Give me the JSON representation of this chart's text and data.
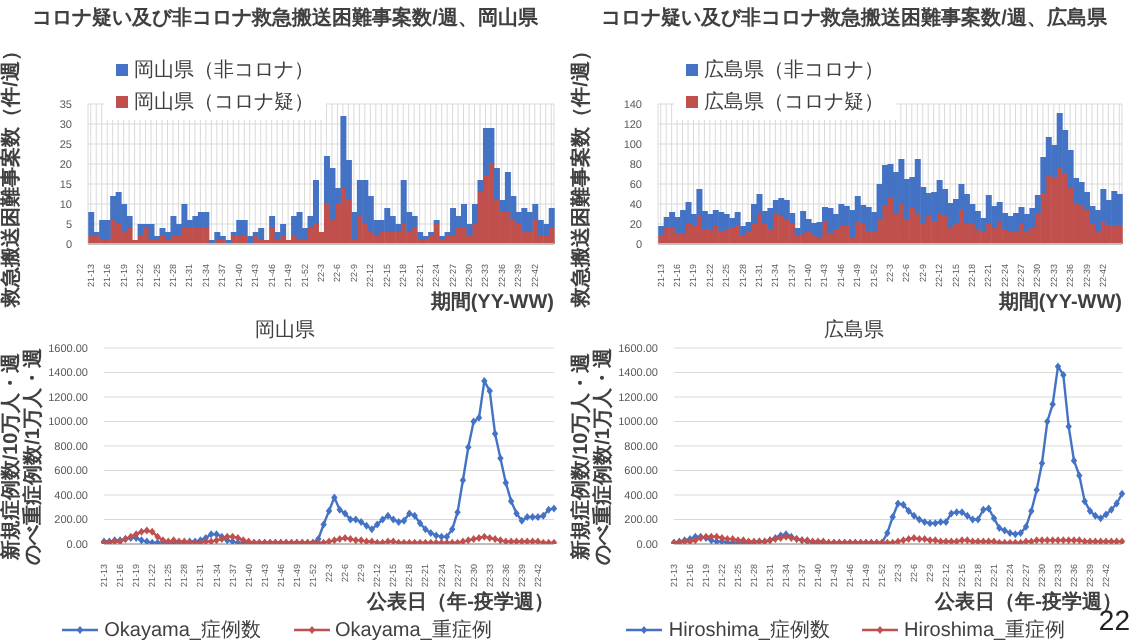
{
  "chart_data": [
    {
      "type": "bar",
      "title": "コロナ疑い及び非コロナ救急搬送困難事案数/週、岡山県",
      "ylabel": "救急搬送困難事案数（件/週）",
      "xlabel": "期間(YY-WW)",
      "stacked": true,
      "grid": true,
      "legend": "top left",
      "categories": [
        "21-13",
        null,
        null,
        "21-16",
        null,
        null,
        "21-19",
        null,
        null,
        "21-22",
        null,
        null,
        "21-25",
        null,
        null,
        "21-28",
        null,
        null,
        "21-31",
        null,
        null,
        "21-34",
        null,
        null,
        "21-37",
        null,
        null,
        "21-40",
        null,
        null,
        "21-43",
        null,
        null,
        "21-46",
        null,
        null,
        "21-49",
        null,
        null,
        "21-52",
        null,
        null,
        "22-3",
        null,
        null,
        "22-6",
        null,
        null,
        "22-9",
        null,
        null,
        "22-12",
        null,
        null,
        "22-15",
        null,
        null,
        "22-18",
        null,
        null,
        "22-21",
        null,
        null,
        "22-24",
        null,
        null,
        "22-27",
        null,
        null,
        "22-30",
        null,
        null,
        "22-33",
        null,
        null,
        "22-36",
        null,
        null,
        "22-39",
        null,
        null,
        "22-42",
        null,
        null,
        null
      ],
      "ylim": [
        0,
        35
      ],
      "yticks": [
        0,
        5,
        10,
        15,
        20,
        25,
        30,
        35
      ],
      "series": [
        {
          "name": "岡山県（コロナ疑）",
          "color": "#c0504d",
          "values": [
            2,
            2,
            1,
            1,
            6,
            5,
            3,
            4,
            1,
            2,
            4,
            1,
            1,
            2,
            1,
            2,
            2,
            4,
            4,
            4,
            4,
            4,
            0,
            1,
            1,
            0,
            2,
            2,
            2,
            0,
            2,
            1,
            1,
            4,
            1,
            2,
            1,
            2,
            1,
            1,
            4,
            5,
            3,
            10,
            6,
            10,
            14,
            11,
            1,
            7,
            5,
            3,
            2,
            3,
            3,
            3,
            3,
            5,
            3,
            4,
            1,
            1,
            2,
            5,
            1,
            2,
            2,
            4,
            4,
            2,
            5,
            13,
            17,
            20,
            11,
            8,
            8,
            6,
            5,
            3,
            3,
            6,
            2,
            2,
            4
          ]
        },
        {
          "name": "岡山県（非コロナ）",
          "color": "#4472c4",
          "values": [
            6,
            1,
            5,
            5,
            6,
            8,
            7,
            3,
            0,
            3,
            1,
            4,
            1,
            2,
            2,
            5,
            3,
            6,
            2,
            3,
            4,
            4,
            1,
            2,
            1,
            1,
            1,
            4,
            4,
            2,
            1,
            3,
            0,
            3,
            2,
            3,
            0,
            5,
            7,
            3,
            3,
            11,
            0,
            12,
            13,
            4,
            18,
            10,
            7,
            9,
            11,
            9,
            4,
            3,
            6,
            4,
            2,
            11,
            5,
            3,
            2,
            1,
            1,
            1,
            1,
            1,
            7,
            3,
            6,
            3,
            5,
            3,
            12,
            9,
            8,
            3,
            10,
            6,
            3,
            6,
            5,
            4,
            4,
            3,
            5
          ]
        }
      ]
    },
    {
      "type": "bar",
      "title": "コロナ疑い及び非コロナ救急搬送困難事案数/週、広島県",
      "ylabel": "救急搬送困難事案数（件/週）",
      "xlabel": "期間(YY-WW)",
      "stacked": true,
      "grid": true,
      "legend": "top left",
      "categories": [
        "21-13",
        null,
        null,
        "21-16",
        null,
        null,
        "21-19",
        null,
        null,
        "21-22",
        null,
        null,
        "21-25",
        null,
        null,
        "21-28",
        null,
        null,
        "21-31",
        null,
        null,
        "21-34",
        null,
        null,
        "21-37",
        null,
        null,
        "21-40",
        null,
        null,
        "21-43",
        null,
        null,
        "21-46",
        null,
        null,
        "21-49",
        null,
        null,
        "21-52",
        null,
        null,
        "22-3",
        null,
        null,
        "22-6",
        null,
        null,
        "22-9",
        null,
        null,
        "22-12",
        null,
        null,
        "22-15",
        null,
        null,
        "22-18",
        null,
        null,
        "22-21",
        null,
        null,
        "22-24",
        null,
        null,
        "22-27",
        null,
        null,
        "22-30",
        null,
        null,
        "22-33",
        null,
        null,
        "22-36",
        null,
        null,
        "22-39",
        null,
        null,
        "22-42",
        null,
        null,
        null
      ],
      "ylim": [
        0,
        140
      ],
      "yticks": [
        0,
        20,
        40,
        60,
        80,
        100,
        120,
        140
      ],
      "series": [
        {
          "name": "広島県（コロナ疑）",
          "color": "#c0504d",
          "values": [
            9,
            17,
            16,
            10,
            11,
            21,
            18,
            28,
            15,
            15,
            18,
            13,
            15,
            17,
            18,
            8,
            12,
            20,
            30,
            20,
            15,
            31,
            28,
            24,
            20,
            9,
            11,
            13,
            8,
            6,
            22,
            10,
            14,
            18,
            19,
            6,
            22,
            20,
            13,
            13,
            25,
            38,
            46,
            30,
            40,
            25,
            36,
            30,
            21,
            28,
            23,
            30,
            28,
            17,
            21,
            35,
            20,
            20,
            15,
            13,
            20,
            16,
            22,
            14,
            12,
            13,
            20,
            13,
            16,
            30,
            51,
            69,
            67,
            77,
            71,
            56,
            41,
            38,
            34,
            20,
            12,
            23,
            19,
            19,
            19
          ]
        },
        {
          "name": "広島県（非コロナ）",
          "color": "#4472c4",
          "values": [
            9,
            10,
            16,
            17,
            23,
            21,
            12,
            27,
            18,
            15,
            16,
            19,
            15,
            9,
            14,
            10,
            10,
            20,
            20,
            13,
            21,
            13,
            18,
            20,
            11,
            7,
            22,
            12,
            13,
            16,
            15,
            26,
            16,
            22,
            19,
            28,
            26,
            19,
            24,
            19,
            35,
            41,
            34,
            42,
            45,
            40,
            31,
            55,
            36,
            23,
            29,
            34,
            27,
            24,
            24,
            25,
            30,
            20,
            18,
            13,
            29,
            22,
            20,
            17,
            16,
            18,
            17,
            17,
            20,
            19,
            36,
            38,
            32,
            54,
            43,
            38,
            25,
            24,
            18,
            18,
            22,
            32,
            25,
            34,
            31
          ]
        }
      ]
    },
    {
      "type": "line",
      "title": "岡山県",
      "ylabel": "新規症例数/10万人・週のべ重症例数/1万人・週",
      "xlabel": "公表日（年-疫学週）",
      "grid": "y",
      "legend": "bottom",
      "marker": "diamond",
      "categories": [
        "21-13",
        null,
        null,
        "21-16",
        null,
        null,
        "21-19",
        null,
        null,
        "21-22",
        null,
        null,
        "21-25",
        null,
        null,
        "21-28",
        null,
        null,
        "21-31",
        null,
        null,
        "21-34",
        null,
        null,
        "21-37",
        null,
        null,
        "21-40",
        null,
        null,
        "21-43",
        null,
        null,
        "21-46",
        null,
        null,
        "21-49",
        null,
        null,
        "21-52",
        null,
        null,
        "22-3",
        null,
        null,
        "22-6",
        null,
        null,
        "22-9",
        null,
        null,
        "22-12",
        null,
        null,
        "22-15",
        null,
        null,
        "22-18",
        null,
        null,
        "22-21",
        null,
        null,
        "22-24",
        null,
        null,
        "22-27",
        null,
        null,
        "22-30",
        null,
        null,
        "22-33",
        null,
        null,
        "22-36",
        null,
        null,
        "22-39",
        null,
        null,
        "22-42",
        null,
        null,
        null
      ],
      "ylim": [
        0,
        1600
      ],
      "yticks": [
        {
          "value": 0,
          "label": "0.00"
        },
        {
          "value": 200,
          "label": "200.00"
        },
        {
          "value": 400,
          "label": "400.00"
        },
        {
          "value": 600,
          "label": "600.00"
        },
        {
          "value": 800,
          "label": "800.00"
        },
        {
          "value": 1000,
          "label": "1000.00"
        },
        {
          "value": 1200,
          "label": "1200.00"
        },
        {
          "value": 1400,
          "label": "1400.00"
        },
        {
          "value": 1600,
          "label": "1600.00"
        }
      ],
      "series": [
        {
          "name": "Okayama_症例数",
          "color": "#4472c4",
          "values": [
            20,
            20,
            30,
            30,
            40,
            50,
            50,
            30,
            20,
            10,
            10,
            10,
            10,
            10,
            10,
            10,
            20,
            20,
            30,
            50,
            80,
            80,
            60,
            30,
            20,
            10,
            10,
            10,
            10,
            10,
            10,
            10,
            10,
            10,
            10,
            10,
            10,
            10,
            10,
            10,
            40,
            160,
            270,
            380,
            280,
            250,
            200,
            200,
            180,
            150,
            120,
            160,
            200,
            230,
            200,
            180,
            190,
            250,
            230,
            170,
            120,
            90,
            70,
            60,
            60,
            120,
            260,
            520,
            790,
            1000,
            1030,
            1330,
            1250,
            900,
            700,
            500,
            350,
            250,
            190,
            220,
            220,
            220,
            230,
            280,
            290
          ]
        },
        {
          "name": "Okayama_重症例",
          "color": "#c0504d",
          "values": [
            10,
            10,
            20,
            20,
            40,
            60,
            80,
            100,
            110,
            100,
            60,
            30,
            20,
            30,
            20,
            20,
            10,
            10,
            10,
            20,
            20,
            30,
            40,
            60,
            60,
            50,
            30,
            20,
            10,
            10,
            10,
            10,
            10,
            10,
            10,
            10,
            10,
            10,
            10,
            10,
            10,
            10,
            20,
            30,
            40,
            50,
            40,
            30,
            30,
            20,
            20,
            10,
            10,
            20,
            20,
            10,
            10,
            10,
            10,
            10,
            10,
            10,
            10,
            10,
            10,
            10,
            10,
            20,
            30,
            40,
            50,
            60,
            50,
            40,
            30,
            20,
            20,
            20,
            20,
            20,
            20,
            20,
            10,
            10,
            10
          ]
        }
      ]
    },
    {
      "type": "line",
      "title": "広島県",
      "ylabel": "新規症例数/10万人・週のべ重症例数/1万人・週",
      "xlabel": "公表日（年-疫学週）",
      "grid": "y",
      "legend": "bottom",
      "marker": "diamond",
      "annotations": [
        "22"
      ],
      "categories": [
        "21-13",
        null,
        null,
        "21-16",
        null,
        null,
        "21-19",
        null,
        null,
        "21-22",
        null,
        null,
        "21-25",
        null,
        null,
        "21-28",
        null,
        null,
        "21-31",
        null,
        null,
        "21-34",
        null,
        null,
        "21-37",
        null,
        null,
        "21-40",
        null,
        null,
        "21-43",
        null,
        null,
        "21-46",
        null,
        null,
        "21-49",
        null,
        null,
        "21-52",
        null,
        null,
        "22-3",
        null,
        null,
        "22-6",
        null,
        null,
        "22-9",
        null,
        null,
        "22-12",
        null,
        null,
        "22-15",
        null,
        null,
        "22-18",
        null,
        null,
        "22-21",
        null,
        null,
        "22-24",
        null,
        null,
        "22-27",
        null,
        null,
        "22-30",
        null,
        null,
        "22-33",
        null,
        null,
        "22-36",
        null,
        null,
        "22-39",
        null,
        null,
        "22-42",
        null,
        null,
        null
      ],
      "ylim": [
        0,
        1600
      ],
      "yticks": [
        {
          "value": 0,
          "label": "0.00"
        },
        {
          "value": 200,
          "label": "200.00"
        },
        {
          "value": 400,
          "label": "400.00"
        },
        {
          "value": 600,
          "label": "600.00"
        },
        {
          "value": 800,
          "label": "800.00"
        },
        {
          "value": 1000,
          "label": "1000.00"
        },
        {
          "value": 1200,
          "label": "1200.00"
        },
        {
          "value": 1400,
          "label": "1400.00"
        },
        {
          "value": 1600,
          "label": "1600.00"
        }
      ],
      "series": [
        {
          "name": "Hiroshima_症例数",
          "color": "#4472c4",
          "values": [
            10,
            20,
            30,
            40,
            60,
            60,
            50,
            30,
            20,
            20,
            10,
            10,
            10,
            10,
            10,
            10,
            20,
            20,
            30,
            50,
            70,
            80,
            60,
            40,
            30,
            20,
            10,
            10,
            10,
            10,
            10,
            10,
            10,
            10,
            10,
            10,
            10,
            10,
            10,
            10,
            90,
            220,
            330,
            320,
            270,
            230,
            200,
            180,
            170,
            170,
            180,
            180,
            250,
            260,
            260,
            230,
            200,
            200,
            280,
            290,
            210,
            130,
            110,
            90,
            80,
            90,
            140,
            270,
            440,
            660,
            1000,
            1140,
            1450,
            1380,
            960,
            680,
            560,
            350,
            270,
            230,
            210,
            240,
            280,
            330,
            410
          ]
        },
        {
          "name": "Hiroshima_重症例",
          "color": "#c0504d",
          "values": [
            10,
            10,
            20,
            20,
            30,
            50,
            60,
            60,
            60,
            50,
            40,
            40,
            30,
            30,
            20,
            20,
            20,
            20,
            30,
            40,
            50,
            60,
            50,
            40,
            30,
            30,
            20,
            20,
            20,
            10,
            10,
            10,
            10,
            10,
            10,
            10,
            10,
            10,
            10,
            10,
            10,
            10,
            20,
            30,
            40,
            50,
            40,
            40,
            30,
            30,
            20,
            20,
            20,
            20,
            30,
            30,
            20,
            20,
            20,
            20,
            20,
            10,
            10,
            10,
            10,
            10,
            20,
            20,
            30,
            30,
            30,
            30,
            30,
            30,
            30,
            30,
            30,
            20,
            20,
            20,
            20,
            20,
            20,
            20,
            20
          ]
        }
      ]
    }
  ]
}
